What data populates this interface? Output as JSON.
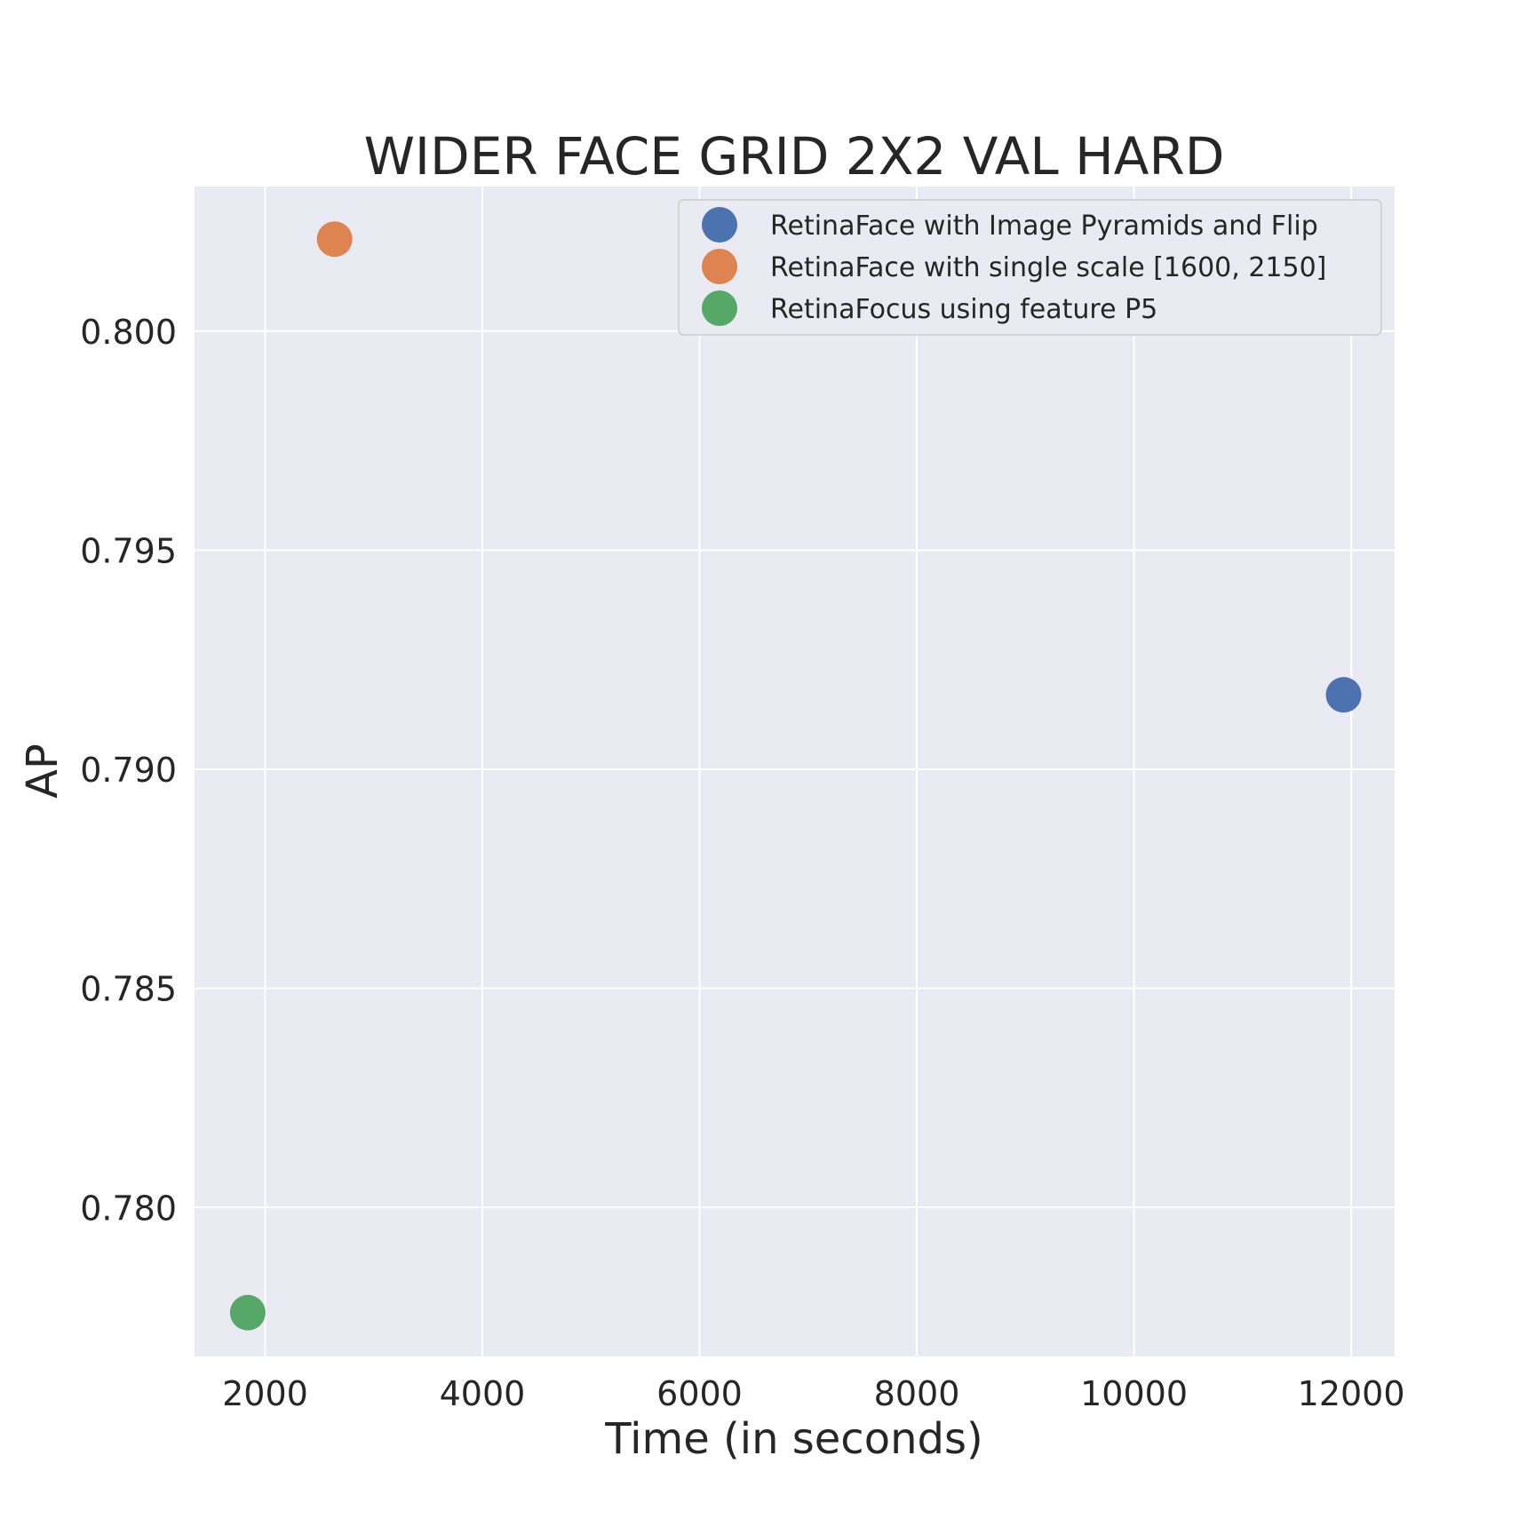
{
  "chart_data": {
    "type": "scatter",
    "title": "WIDER FACE GRID 2X2 VAL HARD",
    "xlabel": "Time (in seconds)",
    "ylabel": "AP",
    "xlim": [
      1350,
      12400
    ],
    "ylim": [
      0.7766,
      0.8033
    ],
    "xticks": [
      2000,
      4000,
      6000,
      8000,
      10000,
      12000
    ],
    "xtick_labels": [
      "2000",
      "4000",
      "6000",
      "8000",
      "10000",
      "12000"
    ],
    "yticks": [
      0.78,
      0.785,
      0.79,
      0.795,
      0.8
    ],
    "ytick_labels": [
      "0.780",
      "0.785",
      "0.790",
      "0.795",
      "0.800"
    ],
    "grid": true,
    "legend_position": "top-right",
    "series": [
      {
        "name": "RetinaFace with Image Pyramids and Flip",
        "color": "#4c72b0",
        "points": [
          {
            "x": 11930,
            "y": 0.7917
          }
        ]
      },
      {
        "name": "RetinaFace with single scale [1600, 2150]",
        "color": "#dd8452",
        "points": [
          {
            "x": 2640,
            "y": 0.8021
          }
        ]
      },
      {
        "name": "RetinaFocus using feature P5",
        "color": "#55a868",
        "points": [
          {
            "x": 1840,
            "y": 0.7776
          }
        ]
      }
    ]
  }
}
